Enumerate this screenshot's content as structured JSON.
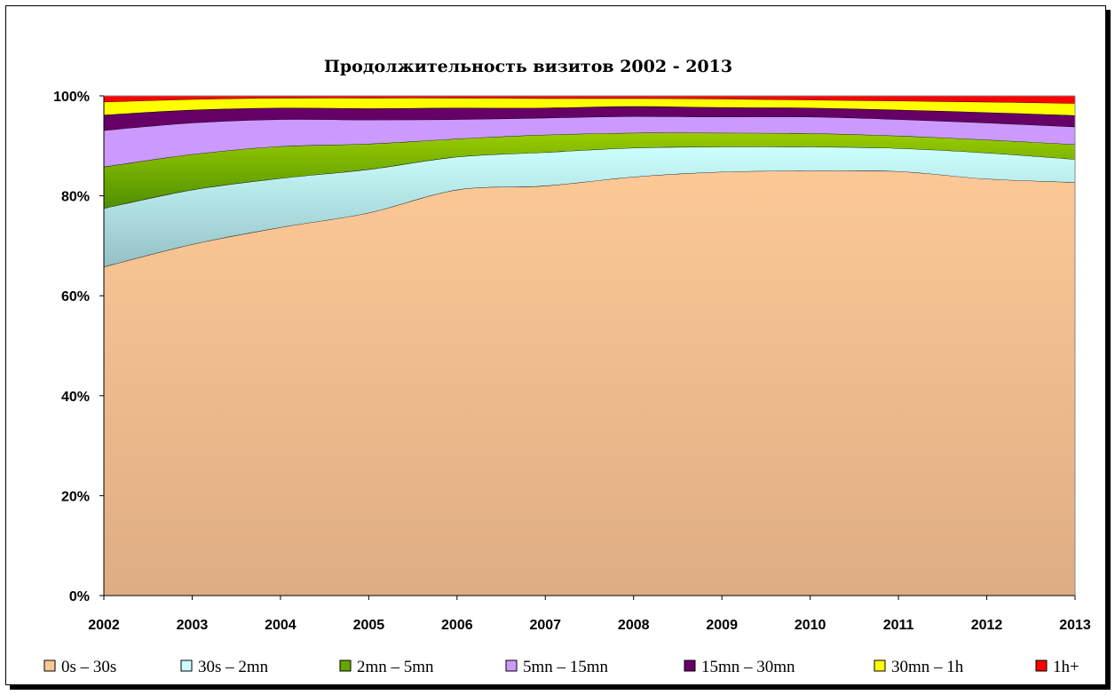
{
  "chart_data": {
    "type": "area",
    "stacked": "percent",
    "title": "Продолжительность визитов 2002 - 2013",
    "x": [
      "2002",
      "2003",
      "2004",
      "2005",
      "2006",
      "2007",
      "2008",
      "2009",
      "2010",
      "2011",
      "2012",
      "2013"
    ],
    "y_ticks": [
      "0%",
      "20%",
      "40%",
      "60%",
      "80%",
      "100%"
    ],
    "ylim": [
      0,
      100
    ],
    "legend_position": "bottom",
    "series": [
      {
        "name": "0s – 30s",
        "color": "#fcc896",
        "values": [
          65.8,
          70.3,
          73.7,
          76.6,
          81.2,
          82.0,
          83.8,
          84.8,
          85.0,
          84.9,
          83.4,
          82.7
        ]
      },
      {
        "name": "30s – 2mn",
        "color": "#ccffff",
        "values": [
          11.7,
          10.9,
          9.8,
          8.7,
          6.6,
          6.7,
          5.8,
          5.0,
          4.8,
          4.6,
          5.2,
          4.6
        ]
      },
      {
        "name": "2mn – 5mn",
        "color": "#66a600",
        "values": [
          8.3,
          7.1,
          6.4,
          5.1,
          3.6,
          3.5,
          3.0,
          2.8,
          2.7,
          2.5,
          2.6,
          3.0
        ]
      },
      {
        "name": "5mn – 15mn",
        "color": "#cc99ff",
        "values": [
          7.3,
          6.3,
          5.4,
          4.8,
          3.9,
          3.4,
          3.3,
          3.2,
          3.3,
          3.3,
          3.4,
          3.5
        ]
      },
      {
        "name": "15mn – 30mn",
        "color": "#660066",
        "values": [
          3.1,
          2.6,
          2.3,
          2.3,
          2.3,
          2.0,
          2.0,
          1.9,
          1.8,
          1.9,
          2.1,
          2.3
        ]
      },
      {
        "name": "30mn – 1h",
        "color": "#ffff00",
        "values": [
          2.6,
          2.1,
          2.0,
          2.1,
          2.0,
          1.9,
          1.6,
          1.7,
          1.6,
          1.8,
          2.1,
          2.4
        ]
      },
      {
        "name": "1h+",
        "color": "#ff0000",
        "values": [
          1.2,
          0.7,
          0.4,
          0.4,
          0.4,
          0.5,
          0.5,
          0.6,
          0.8,
          1.0,
          1.2,
          1.5
        ]
      }
    ]
  }
}
